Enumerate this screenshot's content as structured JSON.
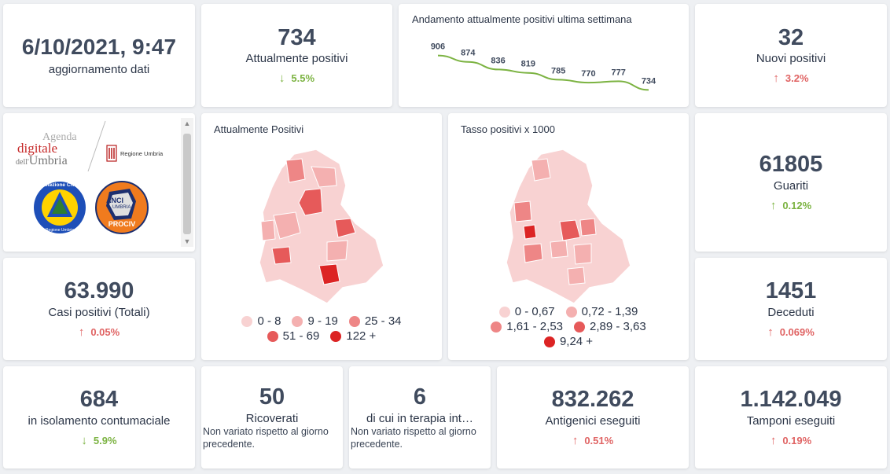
{
  "update": {
    "datetime": "6/10/2021, 9:47",
    "label": "aggiornamento dati"
  },
  "attuali": {
    "value": "734",
    "label": "Attualmente positivi",
    "delta": "5.5%",
    "direction": "down"
  },
  "trend": {
    "title": "Andamento attualmente positivi ultima settimana",
    "color": "#7cb342"
  },
  "nuovi": {
    "value": "32",
    "label": "Nuovi positivi",
    "delta": "3.2%",
    "direction": "up"
  },
  "logos": {
    "agenda_line1": "Agenda",
    "agenda_line2": "digitale",
    "agenda_line3_a": "dell'",
    "agenda_line3_b": "Umbria",
    "regione": "Regione Umbria",
    "protezione": "Protezione Civile",
    "protezione_sub": "Regione Umbria",
    "anci": "ANCI",
    "anci_umbria": "UMBRIA",
    "prociv": "PROCIV"
  },
  "map1": {
    "title": "Attualmente Positivi",
    "legend": [
      {
        "label": "0 - 8",
        "color": "#f8d2d2"
      },
      {
        "label": "9 - 19",
        "color": "#f4b0b0"
      },
      {
        "label": "25 - 34",
        "color": "#ee8686"
      },
      {
        "label": "51 - 69",
        "color": "#e65a5a"
      },
      {
        "label": "122 +",
        "color": "#dc2424"
      }
    ]
  },
  "map2": {
    "title": "Tasso positivi x 1000",
    "legend": [
      {
        "label": "0 - 0,67",
        "color": "#f8d2d2"
      },
      {
        "label": "0,72 - 1,39",
        "color": "#f4b0b0"
      },
      {
        "label": "1,61 - 2,53",
        "color": "#ee8686"
      },
      {
        "label": "2,89 - 3,63",
        "color": "#e65a5a"
      },
      {
        "label": "9,24 +",
        "color": "#dc2424"
      }
    ]
  },
  "guariti": {
    "value": "61805",
    "label": "Guariti",
    "delta": "0.12%",
    "direction": "up"
  },
  "casi": {
    "value": "63.990",
    "label": "Casi positivi (Totali)",
    "delta": "0.05%",
    "direction": "up"
  },
  "deceduti": {
    "value": "1451",
    "label": "Deceduti",
    "delta": "0.069%",
    "direction": "up"
  },
  "isolamento": {
    "value": "684",
    "label": "in isolamento contumaciale",
    "delta": "5.9%",
    "direction": "down"
  },
  "ricoverati": {
    "value": "50",
    "label": "Ricoverati",
    "note": "Non variato rispetto al giorno precedente."
  },
  "terapia": {
    "value": "6",
    "label": "di cui in terapia int…",
    "note": "Non variato rispetto al giorno precedente."
  },
  "antigenici": {
    "value": "832.262",
    "label": "Antigenici eseguiti",
    "delta": "0.51%",
    "direction": "up"
  },
  "tamponi": {
    "value": "1.142.049",
    "label": "Tamponi eseguiti",
    "delta": "0.19%",
    "direction": "up"
  },
  "icons": {
    "up": "arrow-up-icon",
    "down": "arrow-down-icon"
  },
  "chart_data": {
    "type": "line",
    "title": "Andamento attualmente positivi ultima settimana",
    "values": [
      906,
      874,
      836,
      819,
      785,
      770,
      777,
      734
    ],
    "ylim": [
      700,
      920
    ],
    "grid": false
  }
}
